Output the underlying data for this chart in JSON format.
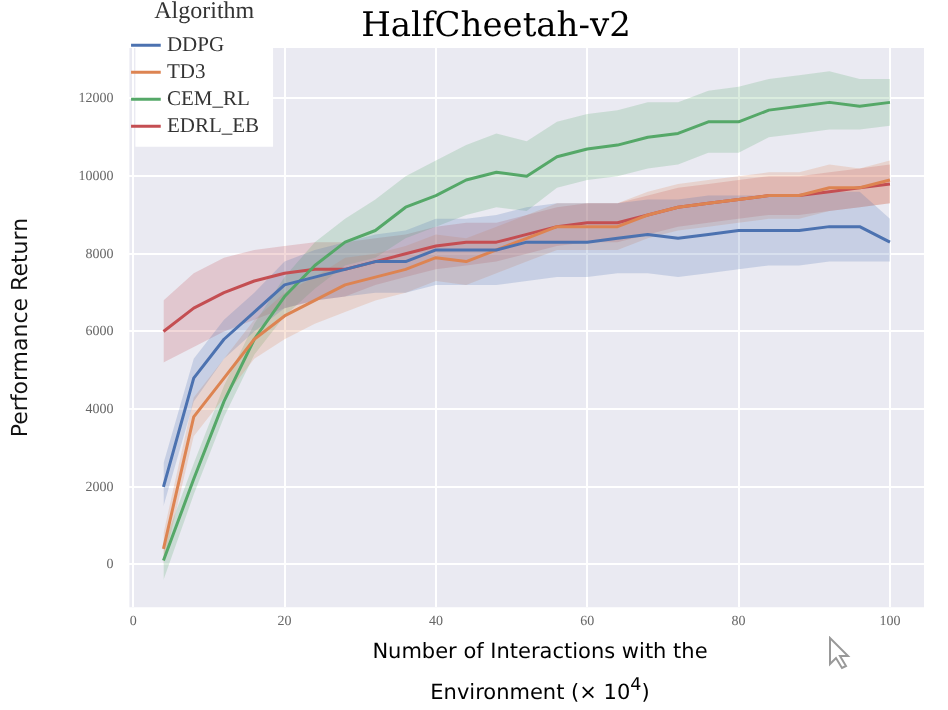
{
  "chart_data": {
    "type": "line",
    "title": "HalfCheetah-v2",
    "xlabel": "Number of Interactions with the Environment (× 10$^{4}$)",
    "ylabel": "Performance Return",
    "legend_title": "Algorithm",
    "legend": "top left",
    "grid": true,
    "marker": "none",
    "line_style": "solid",
    "x": [
      4,
      8,
      12,
      16,
      20,
      24,
      28,
      32,
      36,
      40,
      44,
      48,
      52,
      56,
      60,
      64,
      68,
      72,
      76,
      80,
      84,
      88,
      92,
      96,
      100
    ],
    "xlim": [
      -0.5,
      104.5
    ],
    "xticks": [
      0,
      20,
      40,
      60,
      80,
      100
    ],
    "ylim": [
      -1100,
      13300
    ],
    "yticks": [
      0,
      2000,
      4000,
      6000,
      8000,
      10000,
      12000
    ],
    "series": [
      {
        "name": "DDPG",
        "color": "#4c72b0",
        "values": [
          2000,
          4800,
          5800,
          6500,
          7200,
          7400,
          7600,
          7800,
          7800,
          8100,
          8100,
          8100,
          8300,
          8300,
          8300,
          8400,
          8500,
          8400,
          8500,
          8600,
          8600,
          8600,
          8700,
          8700,
          8300
        ],
        "lower": [
          1500,
          4200,
          5300,
          6000,
          6600,
          6800,
          6900,
          7000,
          7000,
          7200,
          7200,
          7200,
          7300,
          7400,
          7400,
          7500,
          7500,
          7400,
          7500,
          7600,
          7700,
          7700,
          7800,
          7800,
          7800
        ],
        "upper": [
          2600,
          5300,
          6300,
          7000,
          7800,
          8100,
          8300,
          8500,
          8600,
          8900,
          8900,
          9000,
          9200,
          9300,
          9300,
          9300,
          9400,
          9400,
          9500,
          9500,
          9500,
          9500,
          9600,
          9600,
          8900
        ]
      },
      {
        "name": "TD3",
        "color": "#dd8452",
        "values": [
          400,
          3800,
          4800,
          5800,
          6400,
          6800,
          7200,
          7400,
          7600,
          7900,
          7800,
          8100,
          8400,
          8700,
          8700,
          8700,
          9000,
          9200,
          9300,
          9400,
          9500,
          9500,
          9700,
          9700,
          9900
        ],
        "lower": [
          0,
          3300,
          4300,
          5300,
          5800,
          6200,
          6500,
          6800,
          7000,
          7300,
          7200,
          7500,
          7800,
          8100,
          8100,
          8100,
          8400,
          8600,
          8700,
          8800,
          8900,
          8900,
          9100,
          9200,
          9300
        ],
        "upper": [
          800,
          4300,
          5300,
          6300,
          7000,
          7400,
          7900,
          8000,
          8200,
          8500,
          8400,
          8700,
          9000,
          9300,
          9300,
          9300,
          9600,
          9800,
          9900,
          10000,
          10100,
          10100,
          10300,
          10200,
          10400
        ]
      },
      {
        "name": "CEM_RL",
        "color": "#55a868",
        "values": [
          100,
          2200,
          4200,
          5800,
          6900,
          7700,
          8300,
          8600,
          9200,
          9500,
          9900,
          10100,
          10000,
          10500,
          10700,
          10800,
          11000,
          11100,
          11400,
          11400,
          11700,
          11800,
          11900,
          11800,
          11900
        ],
        "lower": [
          -400,
          1800,
          3800,
          5400,
          6400,
          7100,
          7700,
          7900,
          8400,
          8700,
          9000,
          9200,
          9100,
          9700,
          9900,
          10000,
          10200,
          10300,
          10600,
          10600,
          11000,
          11100,
          11200,
          11200,
          11300
        ],
        "upper": [
          500,
          2600,
          4600,
          6200,
          7400,
          8300,
          8900,
          9400,
          10000,
          10400,
          10800,
          11100,
          10900,
          11400,
          11600,
          11700,
          11900,
          11900,
          12200,
          12300,
          12500,
          12600,
          12700,
          12500,
          12500
        ]
      },
      {
        "name": "EDRL_EB",
        "color": "#c44e52",
        "values": [
          6000,
          6600,
          7000,
          7300,
          7500,
          7600,
          7600,
          7800,
          8000,
          8200,
          8300,
          8300,
          8500,
          8700,
          8800,
          8800,
          9000,
          9200,
          9300,
          9400,
          9500,
          9500,
          9600,
          9700,
          9800
        ],
        "lower": [
          5200,
          5600,
          6000,
          6300,
          6600,
          6800,
          6900,
          7200,
          7400,
          7600,
          7700,
          7800,
          8000,
          8200,
          8300,
          8300,
          8500,
          8700,
          8800,
          8900,
          9000,
          9000,
          9100,
          9200,
          9300
        ],
        "upper": [
          6800,
          7500,
          7900,
          8100,
          8200,
          8300,
          8300,
          8400,
          8500,
          8700,
          8800,
          8800,
          9000,
          9200,
          9300,
          9300,
          9500,
          9700,
          9800,
          9900,
          10000,
          10000,
          10100,
          10200,
          10300
        ]
      }
    ]
  }
}
